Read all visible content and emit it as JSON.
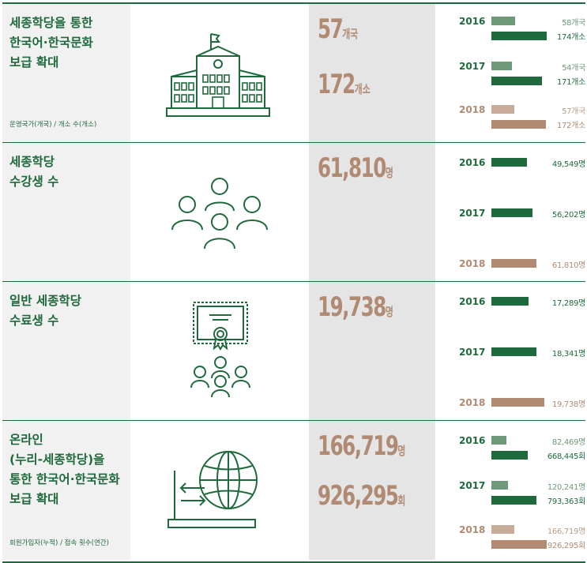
{
  "rows": [
    {
      "title_lines": [
        "세종학당을 통한",
        "한국어·한국문화",
        "보급 확대"
      ],
      "note": "운영국가(개국) / 개소 수(개소)",
      "icon": "school-building-icon",
      "figures": [
        {
          "value": "57",
          "unit": "개국"
        },
        {
          "value": "172",
          "unit": "개소"
        }
      ],
      "chart": [
        {
          "year": "2016",
          "v1": "58개국",
          "v2": "174개소",
          "n1": 58,
          "n2": 174
        },
        {
          "year": "2017",
          "v1": "54개국",
          "v2": "171개소",
          "n1": 54,
          "n2": 171
        },
        {
          "year": "2018",
          "v1": "57개국",
          "v2": "172개소",
          "n1": 57,
          "n2": 172
        }
      ]
    },
    {
      "title_lines": [
        "세종학당",
        "수강생 수"
      ],
      "icon": "people-group-icon",
      "figures": [
        {
          "value": "61,810",
          "unit": "명"
        }
      ],
      "chart": [
        {
          "year": "2016",
          "v1": "49,549명",
          "n1": 49549
        },
        {
          "year": "2017",
          "v1": "56,202명",
          "n1": 56202
        },
        {
          "year": "2018",
          "v1": "61,810명",
          "n1": 61810
        }
      ]
    },
    {
      "title_lines": [
        "일반 세종학당",
        "수료생 수"
      ],
      "icon": "certificate-graduates-icon",
      "figures": [
        {
          "value": "19,738",
          "unit": "명"
        }
      ],
      "chart": [
        {
          "year": "2016",
          "v1": "17,289명",
          "n1": 17289
        },
        {
          "year": "2017",
          "v1": "18,341명",
          "n1": 18341
        },
        {
          "year": "2018",
          "v1": "19,738명",
          "n1": 19738
        }
      ]
    },
    {
      "title_lines": [
        "온라인",
        "(누리-세종학당)을",
        "통한 한국어·한국문화",
        "보급 확대"
      ],
      "note": "회원가입자(누적) / 접속 횟수(연간)",
      "icon": "laptop-globe-icon",
      "figures": [
        {
          "value": "166,719",
          "unit": "명"
        },
        {
          "value": "926,295",
          "unit": "회"
        }
      ],
      "chart": [
        {
          "year": "2016",
          "v1": "82,469명",
          "v2": "668,445회",
          "n1": 82469,
          "n2": 668445
        },
        {
          "year": "2017",
          "v1": "120,241명",
          "v2": "793,363회",
          "n1": 120241,
          "n2": 793363
        },
        {
          "year": "2018",
          "v1": "166,719명",
          "v2": "926,295회",
          "n1": 166719,
          "n2": 926295
        }
      ]
    }
  ],
  "colors": {
    "dark_green": "#1f6a3c",
    "light_green": "#6f9a79",
    "brown": "#b08a72",
    "light_brown": "#c9ab9a"
  }
}
